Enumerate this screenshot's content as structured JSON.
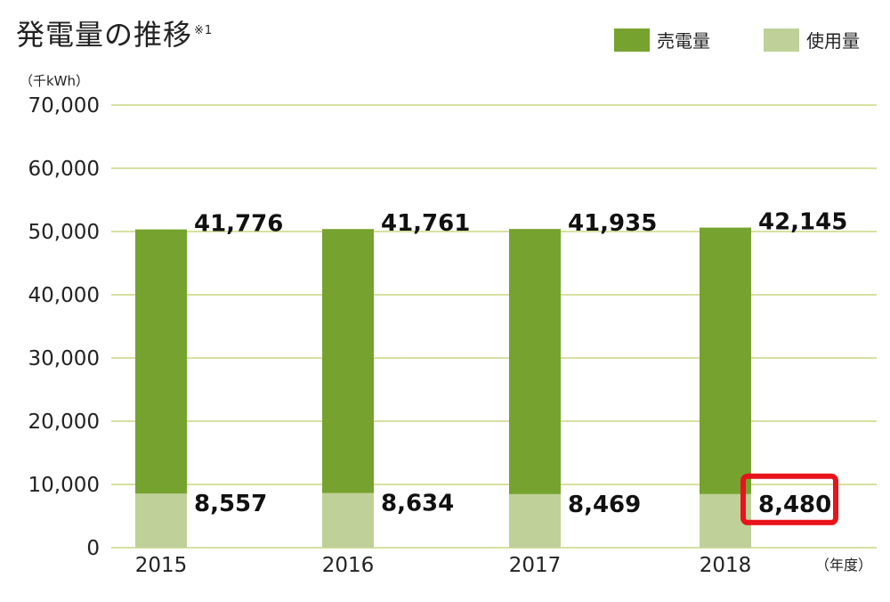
{
  "header": {
    "title": "発電量の推移",
    "footnote": "※1",
    "unit": "（千kWh）"
  },
  "colors": {
    "sold": "#76a22f",
    "used": "#bfd198",
    "grid": "#d6e0a0",
    "highlight": "#e8131b"
  },
  "chart_data": {
    "type": "bar",
    "stacked": true,
    "categories": [
      "2015",
      "2016",
      "2017",
      "2018"
    ],
    "series": [
      {
        "name": "使用量",
        "values": [
          8557,
          8634,
          8469,
          8480
        ],
        "labels": [
          "8,557",
          "8,634",
          "8,469",
          "8,480"
        ]
      },
      {
        "name": "売電量",
        "values": [
          41776,
          41761,
          41935,
          42145
        ],
        "labels": [
          "41,776",
          "41,761",
          "41,935",
          "42,145"
        ]
      }
    ],
    "legend_order": [
      "売電量",
      "使用量"
    ],
    "legend_position": "top-right",
    "ylim": [
      0,
      70000
    ],
    "yticks": [
      0,
      10000,
      20000,
      30000,
      40000,
      50000,
      60000,
      70000
    ],
    "ytick_labels": [
      "0",
      "10,000",
      "20,000",
      "30,000",
      "40,000",
      "50,000",
      "60,000",
      "70,000"
    ],
    "xunit": "（年度）",
    "grid": true,
    "highlighted": {
      "series": "使用量",
      "category": "2018"
    }
  }
}
